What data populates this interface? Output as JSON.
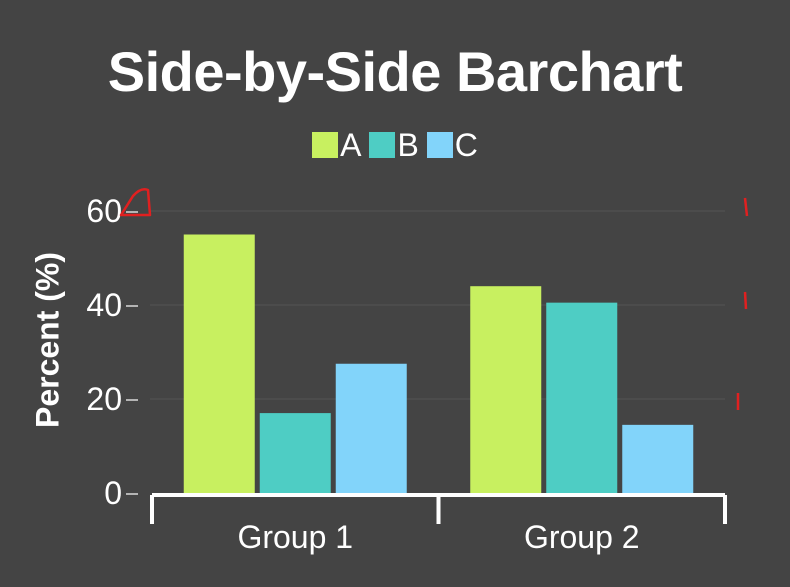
{
  "colors": {
    "background": "#444444",
    "gridline": "#555555",
    "axis": "#ffffff",
    "annotation": "#e02020"
  },
  "chart_data": {
    "type": "bar",
    "title": "Side-by-Side Barchart",
    "xlabel": "",
    "ylabel": "Percent (%)",
    "categories": [
      "Group 1",
      "Group 2"
    ],
    "series": [
      {
        "name": "A",
        "color": "#c8f060",
        "values": [
          55,
          44
        ]
      },
      {
        "name": "B",
        "color": "#4ecdc4",
        "values": [
          17,
          40.5
        ]
      },
      {
        "name": "C",
        "color": "#82d4fa",
        "values": [
          27.5,
          14.5
        ]
      }
    ],
    "ylim": [
      0,
      60
    ],
    "yticks": [
      0,
      20,
      40,
      60
    ],
    "grid": true,
    "legend_position": "top-center"
  }
}
